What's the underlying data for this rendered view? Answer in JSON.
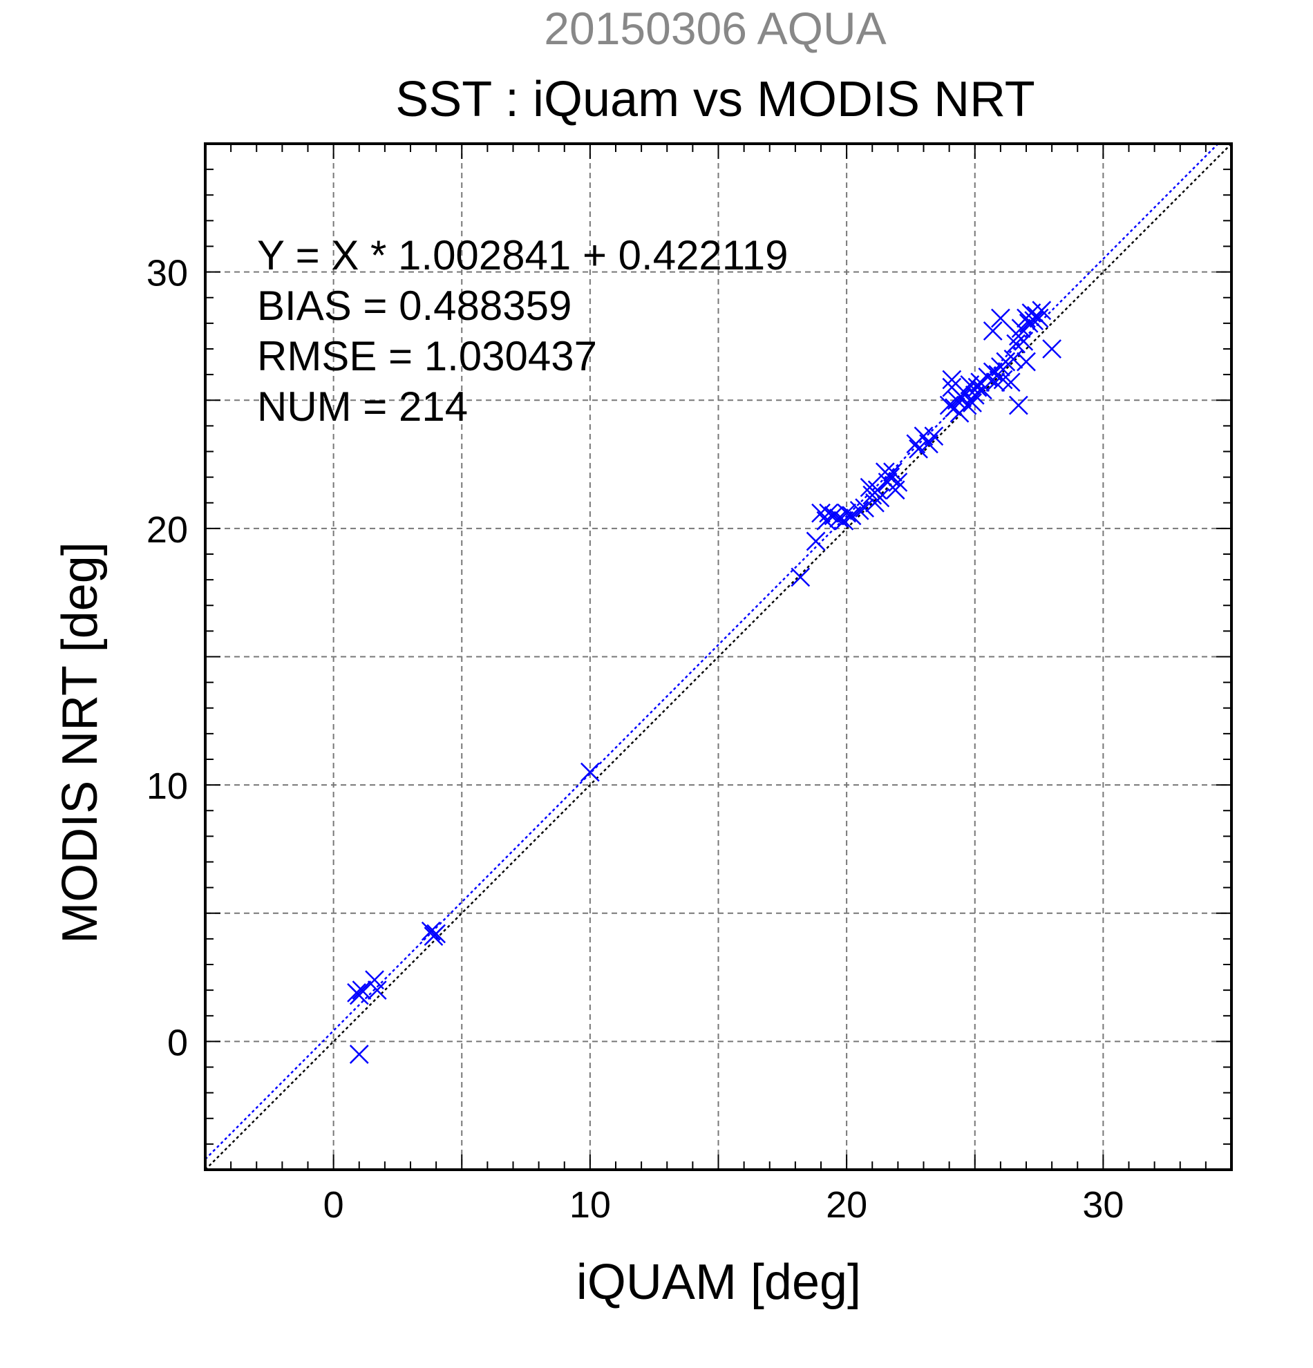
{
  "chart_data": {
    "type": "scatter",
    "title": "20150306 AQUA",
    "subtitle": "SST : iQuam vs MODIS NRT",
    "xlabel": "iQUAM [deg]",
    "ylabel": "MODIS NRT [deg]",
    "xlim": [
      -5,
      35
    ],
    "ylim": [
      -5,
      35
    ],
    "xticks": [
      0,
      10,
      20,
      30
    ],
    "yticks": [
      0,
      10,
      20,
      30
    ],
    "grid": true,
    "annotations": [
      "Y = X * 1.002841 + 0.422119",
      "BIAS = 0.488359",
      "RMSE = 1.030437",
      "NUM = 214"
    ],
    "colors": {
      "points": "#0000ff",
      "fit_line": "#0000ff",
      "identity_line": "#000000",
      "title1": "#888888"
    },
    "fit": {
      "slope": 1.002841,
      "intercept": 0.422119
    },
    "series": [
      {
        "marker": "x",
        "x": [
          0.9,
          1.0,
          1.1,
          1.6,
          1.7,
          1.0,
          3.8,
          3.9,
          4.0,
          10.0,
          18.2,
          18.8,
          19.0,
          19.2,
          19.3,
          19.5,
          19.7,
          19.9,
          20.0,
          20.2,
          20.5,
          20.7,
          20.9,
          21.0,
          21.1,
          21.2,
          21.3,
          21.5,
          21.6,
          21.7,
          21.8,
          21.9,
          22.0,
          22.7,
          22.8,
          23.0,
          23.2,
          23.4,
          24.0,
          24.1,
          24.2,
          24.3,
          24.4,
          24.5,
          24.6,
          24.7,
          24.8,
          24.9,
          25.0,
          25.1,
          25.2,
          25.3,
          25.5,
          25.7,
          25.8,
          25.9,
          26.0,
          26.1,
          26.2,
          26.4,
          26.5,
          26.6,
          26.7,
          26.8,
          26.9,
          27.0,
          27.1,
          27.2,
          27.3,
          27.4,
          27.5,
          27.6,
          25.7,
          26.0,
          26.7,
          27.0,
          28.0,
          24.1
        ],
        "y": [
          1.9,
          1.8,
          2.0,
          2.4,
          2.0,
          -0.5,
          4.3,
          4.1,
          4.2,
          10.5,
          18.1,
          19.5,
          20.6,
          20.3,
          20.6,
          20.5,
          20.4,
          20.3,
          20.6,
          20.5,
          20.7,
          20.8,
          21.6,
          21.3,
          21.0,
          21.5,
          21.2,
          22.2,
          21.8,
          22.0,
          22.2,
          21.5,
          21.8,
          23.3,
          23.1,
          23.6,
          23.3,
          23.6,
          24.8,
          25.5,
          24.7,
          25.0,
          24.5,
          25.1,
          25.3,
          24.8,
          25.6,
          24.9,
          25.2,
          25.5,
          25.7,
          25.4,
          25.9,
          26.1,
          25.7,
          26.0,
          26.3,
          25.8,
          26.5,
          25.7,
          26.6,
          27.2,
          27.5,
          27.8,
          27.3,
          28.2,
          28.0,
          28.4,
          28.1,
          28.3,
          28.2,
          28.5,
          27.7,
          28.2,
          24.8,
          26.5,
          27.0,
          25.8
        ]
      }
    ]
  }
}
